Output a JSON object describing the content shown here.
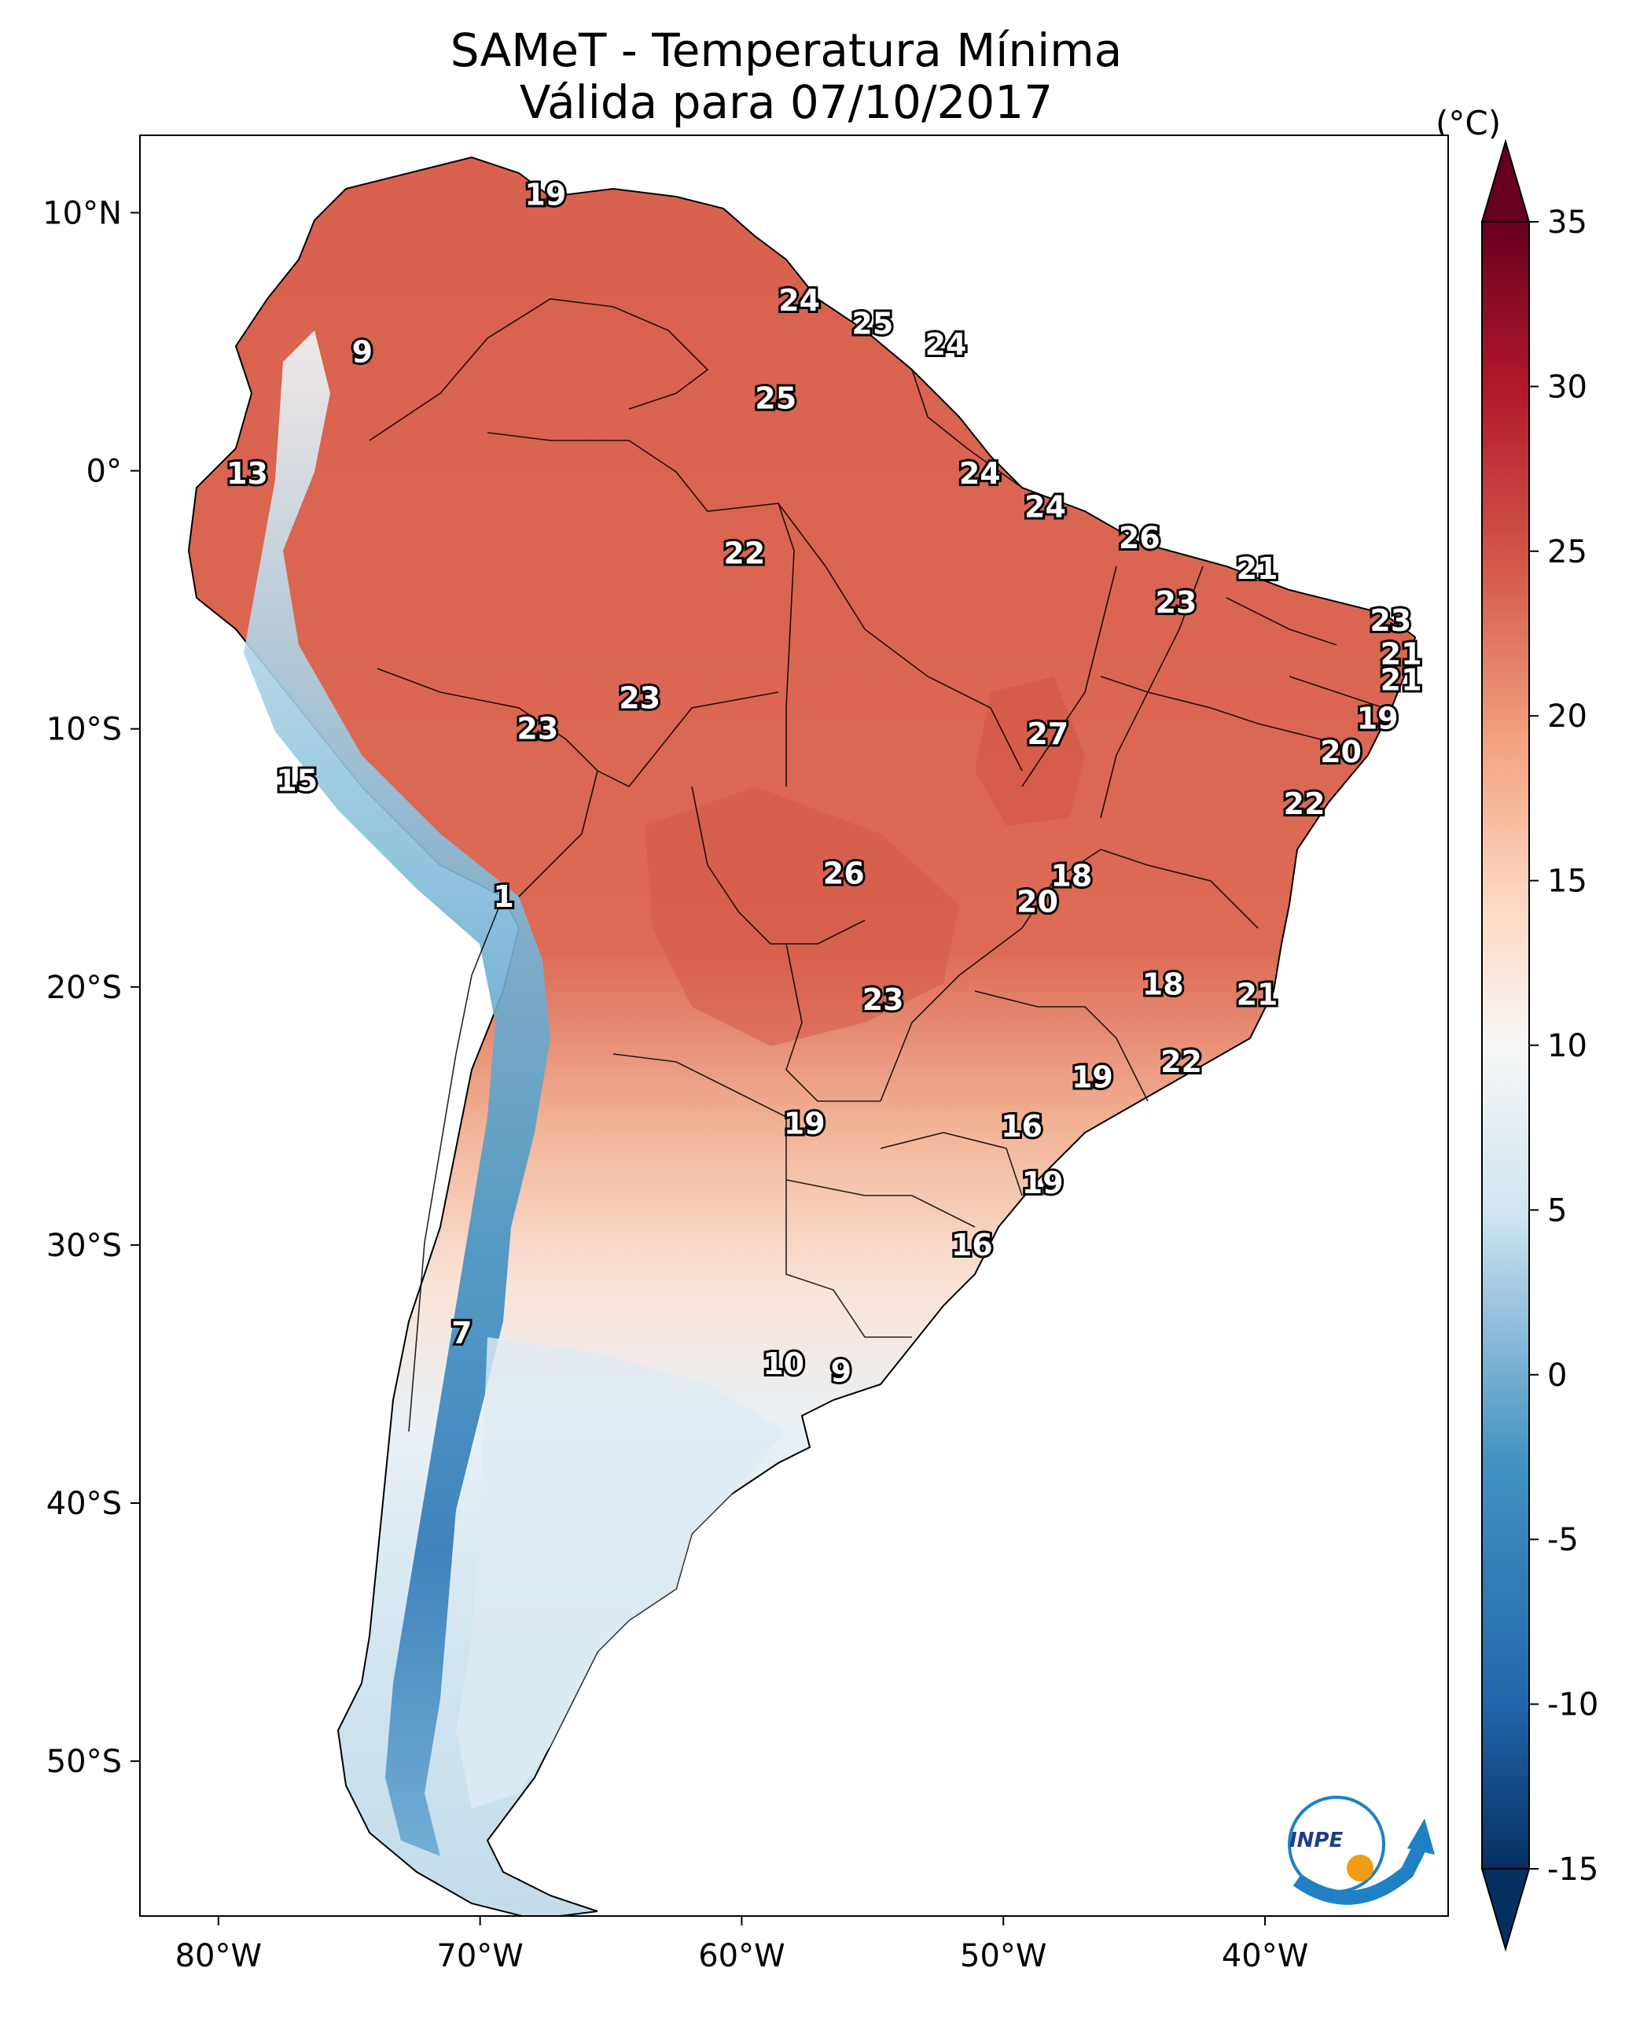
{
  "title": "SAMeT - Temperatura Mínima",
  "subtitle": "Válida para 07/10/2017",
  "colorbar": {
    "unit": "(°C)",
    "min": -15,
    "max": 35,
    "ticks": [
      "35",
      "30",
      "25",
      "20",
      "15",
      "10",
      "5",
      "0",
      "-5",
      "-10",
      "-15"
    ],
    "colors": [
      "#053061",
      "#2166ac",
      "#4393c3",
      "#92c5de",
      "#d1e5f0",
      "#f7f7f7",
      "#fddbc7",
      "#f4a582",
      "#d6604d",
      "#b2182b",
      "#67001f"
    ]
  },
  "axes": {
    "lon_ticks": [
      "80°W",
      "70°W",
      "60°W",
      "50°W",
      "40°W"
    ],
    "lat_ticks": [
      "10°N",
      "0°",
      "10°S",
      "20°S",
      "30°S",
      "40°S",
      "50°S"
    ],
    "lon_range": [
      -83,
      -33
    ],
    "lat_range": [
      -56,
      13
    ]
  },
  "chart_data": {
    "type": "map",
    "title": "SAMeT - Temperatura Mínima",
    "subtitle": "Válida para 07/10/2017",
    "unit": "(°C)",
    "station_values": [
      {
        "lon": -67.5,
        "lat": 10.7,
        "value": "19"
      },
      {
        "lon": -57.8,
        "lat": 6.6,
        "value": "24"
      },
      {
        "lon": -55.0,
        "lat": 5.7,
        "value": "25"
      },
      {
        "lon": -52.2,
        "lat": 4.9,
        "value": "24"
      },
      {
        "lon": -74.5,
        "lat": 4.6,
        "value": "9"
      },
      {
        "lon": -58.7,
        "lat": 2.8,
        "value": "25"
      },
      {
        "lon": -78.9,
        "lat": -0.1,
        "value": "13"
      },
      {
        "lon": -50.9,
        "lat": -0.1,
        "value": "24"
      },
      {
        "lon": -48.4,
        "lat": -1.4,
        "value": "24"
      },
      {
        "lon": -44.8,
        "lat": -2.6,
        "value": "26"
      },
      {
        "lon": -59.9,
        "lat": -3.2,
        "value": "22"
      },
      {
        "lon": -40.3,
        "lat": -3.8,
        "value": "21"
      },
      {
        "lon": -43.4,
        "lat": -5.1,
        "value": "23"
      },
      {
        "lon": -35.2,
        "lat": -5.8,
        "value": "23"
      },
      {
        "lon": -34.8,
        "lat": -7.1,
        "value": "21"
      },
      {
        "lon": -34.8,
        "lat": -8.1,
        "value": "21"
      },
      {
        "lon": -63.9,
        "lat": -8.8,
        "value": "23"
      },
      {
        "lon": -35.7,
        "lat": -9.6,
        "value": "19"
      },
      {
        "lon": -67.8,
        "lat": -10.0,
        "value": "23"
      },
      {
        "lon": -48.3,
        "lat": -10.2,
        "value": "27"
      },
      {
        "lon": -37.1,
        "lat": -10.9,
        "value": "20"
      },
      {
        "lon": -77.0,
        "lat": -12.0,
        "value": "15"
      },
      {
        "lon": -38.5,
        "lat": -12.9,
        "value": "22"
      },
      {
        "lon": -56.1,
        "lat": -15.6,
        "value": "26"
      },
      {
        "lon": -47.4,
        "lat": -15.7,
        "value": "18"
      },
      {
        "lon": -48.7,
        "lat": -16.7,
        "value": "20"
      },
      {
        "lon": -69.1,
        "lat": -16.5,
        "value": "1"
      },
      {
        "lon": -43.9,
        "lat": -19.9,
        "value": "18"
      },
      {
        "lon": -40.3,
        "lat": -20.3,
        "value": "21"
      },
      {
        "lon": -54.6,
        "lat": -20.5,
        "value": "23"
      },
      {
        "lon": -43.2,
        "lat": -22.9,
        "value": "22"
      },
      {
        "lon": -46.6,
        "lat": -23.5,
        "value": "19"
      },
      {
        "lon": -57.6,
        "lat": -25.3,
        "value": "19"
      },
      {
        "lon": -49.3,
        "lat": -25.4,
        "value": "16"
      },
      {
        "lon": -48.5,
        "lat": -27.6,
        "value": "19"
      },
      {
        "lon": -51.2,
        "lat": -30.0,
        "value": "16"
      },
      {
        "lon": -70.7,
        "lat": -33.4,
        "value": "7"
      },
      {
        "lon": -58.4,
        "lat": -34.6,
        "value": "10"
      },
      {
        "lon": -56.2,
        "lat": -34.9,
        "value": "9"
      }
    ]
  },
  "logo": {
    "text": "INPE"
  }
}
